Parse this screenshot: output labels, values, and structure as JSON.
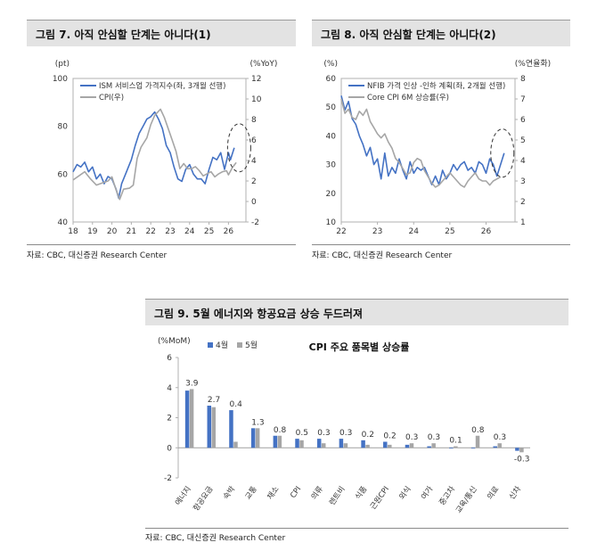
{
  "colors": {
    "blue": "#4472c4",
    "gray": "#a6a6a6",
    "axis": "#808080",
    "title_bg": "#e3e3e3"
  },
  "fig7": {
    "title": "그림 7. 아직 안심할 단계는 아니다(1)",
    "source": "자료: CBC, 대신증권 Research Center",
    "chart_data": {
      "type": "line",
      "left_unit": "(pt)",
      "right_unit": "(%YoY)",
      "x_ticks": [
        "18",
        "19",
        "20",
        "21",
        "22",
        "23",
        "24",
        "25",
        "26"
      ],
      "y_left_ticks": [
        "40",
        "60",
        "80",
        "100"
      ],
      "y_left_range": [
        40,
        100
      ],
      "y_right_ticks": [
        "-2",
        "0",
        "2",
        "4",
        "6",
        "8",
        "10",
        "12"
      ],
      "y_right_range": [
        -2,
        12
      ],
      "x_range": [
        2018.0,
        2026.9
      ],
      "series": [
        {
          "name": "ISM 서비스업 가격지수(좌, 3개월 선행)",
          "axis": "left",
          "color": "#4472c4",
          "points": [
            [
              2018.0,
              61
            ],
            [
              2018.2,
              64
            ],
            [
              2018.4,
              63
            ],
            [
              2018.6,
              65
            ],
            [
              2018.8,
              61
            ],
            [
              2019.0,
              63
            ],
            [
              2019.2,
              58
            ],
            [
              2019.4,
              60
            ],
            [
              2019.6,
              56
            ],
            [
              2019.8,
              59
            ],
            [
              2020.0,
              58
            ],
            [
              2020.2,
              54
            ],
            [
              2020.35,
              50
            ],
            [
              2020.5,
              56
            ],
            [
              2020.7,
              60
            ],
            [
              2020.9,
              64
            ],
            [
              2021.0,
              66
            ],
            [
              2021.2,
              72
            ],
            [
              2021.4,
              77
            ],
            [
              2021.6,
              80
            ],
            [
              2021.8,
              83
            ],
            [
              2022.0,
              84
            ],
            [
              2022.2,
              86
            ],
            [
              2022.4,
              83
            ],
            [
              2022.6,
              79
            ],
            [
              2022.8,
              72
            ],
            [
              2023.0,
              69
            ],
            [
              2023.2,
              63
            ],
            [
              2023.4,
              58
            ],
            [
              2023.6,
              57
            ],
            [
              2023.8,
              62
            ],
            [
              2024.0,
              64
            ],
            [
              2024.2,
              60
            ],
            [
              2024.4,
              58
            ],
            [
              2024.6,
              58
            ],
            [
              2024.8,
              56
            ],
            [
              2025.0,
              62
            ],
            [
              2025.2,
              67
            ],
            [
              2025.4,
              66
            ],
            [
              2025.6,
              69
            ],
            [
              2025.8,
              62
            ],
            [
              2026.0,
              69
            ],
            [
              2026.1,
              66
            ],
            [
              2026.3,
              71
            ]
          ]
        },
        {
          "name": "CPI(우)",
          "axis": "right",
          "color": "#a6a6a6",
          "points": [
            [
              2018.0,
              2.1
            ],
            [
              2018.3,
              2.5
            ],
            [
              2018.6,
              2.9
            ],
            [
              2018.9,
              2.2
            ],
            [
              2019.2,
              1.6
            ],
            [
              2019.5,
              1.8
            ],
            [
              2019.8,
              2.0
            ],
            [
              2020.0,
              2.4
            ],
            [
              2020.2,
              1.2
            ],
            [
              2020.4,
              0.2
            ],
            [
              2020.6,
              1.2
            ],
            [
              2020.9,
              1.3
            ],
            [
              2021.1,
              1.6
            ],
            [
              2021.3,
              4.2
            ],
            [
              2021.5,
              5.3
            ],
            [
              2021.8,
              6.2
            ],
            [
              2022.0,
              7.5
            ],
            [
              2022.2,
              8.4
            ],
            [
              2022.5,
              9.0
            ],
            [
              2022.7,
              8.2
            ],
            [
              2022.9,
              7.1
            ],
            [
              2023.1,
              6.0
            ],
            [
              2023.3,
              4.9
            ],
            [
              2023.5,
              3.2
            ],
            [
              2023.7,
              3.7
            ],
            [
              2023.9,
              3.2
            ],
            [
              2024.1,
              3.2
            ],
            [
              2024.3,
              3.4
            ],
            [
              2024.5,
              3.0
            ],
            [
              2024.7,
              2.5
            ],
            [
              2024.9,
              2.7
            ],
            [
              2025.1,
              2.9
            ],
            [
              2025.3,
              2.4
            ],
            [
              2025.5,
              2.7
            ],
            [
              2025.7,
              2.9
            ],
            [
              2025.9,
              3.0
            ],
            [
              2026.0,
              2.6
            ],
            [
              2026.2,
              3.3
            ],
            [
              2026.4,
              3.8
            ]
          ]
        }
      ],
      "highlight": "dashed-ellipse-around-latest"
    }
  },
  "fig8": {
    "title": "그림 8. 아직 안심할 단계는 아니다(2)",
    "source": "자료: CBC, 대신증권 Research Center",
    "chart_data": {
      "type": "line",
      "left_unit": "(%)",
      "right_unit": "(%연율화)",
      "x_ticks": [
        "22",
        "23",
        "24",
        "25",
        "26"
      ],
      "y_left_ticks": [
        "10",
        "20",
        "30",
        "40",
        "50",
        "60"
      ],
      "y_left_range": [
        10,
        60
      ],
      "y_right_ticks": [
        "1",
        "2",
        "3",
        "4",
        "5",
        "6",
        "7",
        "8"
      ],
      "y_right_range": [
        1,
        8
      ],
      "x_range": [
        2022.0,
        2026.8
      ],
      "series": [
        {
          "name": "NFIB 가격 인상 -인하 계획(좌, 2개월 선행)",
          "axis": "left",
          "color": "#4472c4",
          "points": [
            [
              2022.0,
              54
            ],
            [
              2022.1,
              49
            ],
            [
              2022.2,
              52
            ],
            [
              2022.3,
              46
            ],
            [
              2022.4,
              44
            ],
            [
              2022.5,
              40
            ],
            [
              2022.6,
              37
            ],
            [
              2022.7,
              33
            ],
            [
              2022.8,
              36
            ],
            [
              2022.9,
              30
            ],
            [
              2023.0,
              32
            ],
            [
              2023.1,
              25
            ],
            [
              2023.2,
              34
            ],
            [
              2023.3,
              26
            ],
            [
              2023.4,
              29
            ],
            [
              2023.5,
              27
            ],
            [
              2023.6,
              32
            ],
            [
              2023.7,
              28
            ],
            [
              2023.8,
              25
            ],
            [
              2023.9,
              31
            ],
            [
              2024.0,
              27
            ],
            [
              2024.1,
              29
            ],
            [
              2024.2,
              28
            ],
            [
              2024.3,
              29
            ],
            [
              2024.4,
              26
            ],
            [
              2024.5,
              23
            ],
            [
              2024.6,
              26
            ],
            [
              2024.7,
              23
            ],
            [
              2024.8,
              28
            ],
            [
              2024.9,
              25
            ],
            [
              2025.0,
              27
            ],
            [
              2025.1,
              30
            ],
            [
              2025.2,
              28
            ],
            [
              2025.3,
              30
            ],
            [
              2025.4,
              31
            ],
            [
              2025.5,
              28
            ],
            [
              2025.6,
              29
            ],
            [
              2025.7,
              27
            ],
            [
              2025.8,
              31
            ],
            [
              2025.9,
              30
            ],
            [
              2026.0,
              27
            ],
            [
              2026.1,
              32
            ],
            [
              2026.2,
              30
            ],
            [
              2026.3,
              26
            ],
            [
              2026.5,
              34
            ]
          ]
        },
        {
          "name": "Core CPI 6M 상승률(우)",
          "axis": "right",
          "color": "#a6a6a6",
          "points": [
            [
              2022.0,
              7.0
            ],
            [
              2022.1,
              6.3
            ],
            [
              2022.2,
              6.5
            ],
            [
              2022.3,
              6.1
            ],
            [
              2022.4,
              6.0
            ],
            [
              2022.5,
              6.4
            ],
            [
              2022.6,
              6.2
            ],
            [
              2022.7,
              6.5
            ],
            [
              2022.8,
              5.9
            ],
            [
              2022.9,
              5.6
            ],
            [
              2023.0,
              5.3
            ],
            [
              2023.1,
              5.1
            ],
            [
              2023.2,
              5.3
            ],
            [
              2023.3,
              4.9
            ],
            [
              2023.4,
              4.6
            ],
            [
              2023.5,
              4.1
            ],
            [
              2023.6,
              3.9
            ],
            [
              2023.7,
              3.6
            ],
            [
              2023.8,
              3.3
            ],
            [
              2023.9,
              3.4
            ],
            [
              2024.0,
              3.9
            ],
            [
              2024.1,
              4.1
            ],
            [
              2024.2,
              4.0
            ],
            [
              2024.3,
              3.5
            ],
            [
              2024.4,
              3.2
            ],
            [
              2024.5,
              2.9
            ],
            [
              2024.6,
              2.7
            ],
            [
              2024.7,
              2.8
            ],
            [
              2024.8,
              3.0
            ],
            [
              2024.9,
              3.2
            ],
            [
              2025.0,
              3.4
            ],
            [
              2025.1,
              3.2
            ],
            [
              2025.2,
              3.0
            ],
            [
              2025.3,
              2.8
            ],
            [
              2025.4,
              2.7
            ],
            [
              2025.5,
              3.0
            ],
            [
              2025.6,
              3.2
            ],
            [
              2025.7,
              3.4
            ],
            [
              2025.8,
              3.1
            ],
            [
              2025.9,
              3.0
            ],
            [
              2026.0,
              3.0
            ],
            [
              2026.1,
              2.8
            ],
            [
              2026.2,
              3.0
            ],
            [
              2026.3,
              3.1
            ],
            [
              2026.4,
              3.2
            ]
          ]
        }
      ],
      "highlight": "dashed-ellipse-around-latest"
    }
  },
  "fig9": {
    "title": "그림 9. 5월 에너지와 항공요금 상승 두드러져",
    "source": "자료: CBC, 대신증권 Research Center",
    "chart_data": {
      "type": "bar",
      "title": "CPI 주요 품목별 상승률",
      "y_unit": "(%MoM)",
      "y_ticks": [
        "-2",
        "0",
        "2",
        "4",
        "6"
      ],
      "ylim": [
        -2,
        6
      ],
      "legend_position": "top-left",
      "categories": [
        "에너지",
        "항공요금",
        "숙박",
        "교통",
        "채소",
        "CPI",
        "의류",
        "렌트비",
        "식품",
        "근원CPI",
        "외식",
        "여가",
        "중고차",
        "교육/통신",
        "의료",
        "신차"
      ],
      "series": [
        {
          "name": "4월",
          "color": "#4472c4",
          "values": [
            3.8,
            2.8,
            2.5,
            1.3,
            0.8,
            0.6,
            0.6,
            0.6,
            0.5,
            0.4,
            0.2,
            0.1,
            0.0,
            0.0,
            0.1,
            -0.2
          ]
        },
        {
          "name": "5월",
          "color": "#a6a6a6",
          "values": [
            3.9,
            2.7,
            0.4,
            1.3,
            0.8,
            0.5,
            0.3,
            0.3,
            0.2,
            0.2,
            0.3,
            0.3,
            0.1,
            0.8,
            0.3,
            -0.3
          ]
        }
      ],
      "data_labels": [
        "3.9",
        "2.7",
        "0.4",
        "1.3",
        "0.8",
        "0.5",
        "0.3",
        "0.3",
        "0.2",
        "0.2",
        "0.3",
        "0.3",
        "0.1",
        "0.8",
        "0.3",
        "-0.3"
      ]
    }
  }
}
